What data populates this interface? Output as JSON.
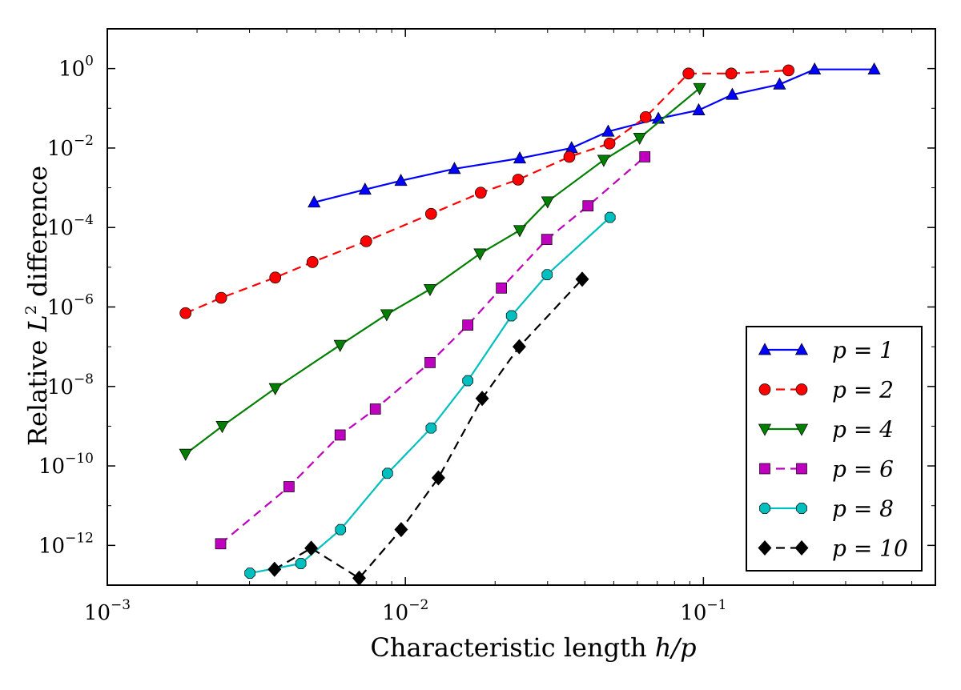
{
  "chart_data": {
    "type": "line",
    "title": "",
    "xlabel": "Characteristic length h/p",
    "ylabel": "Relative L² difference",
    "xlabel_parts": {
      "text": "Characteristic length ",
      "math": "h/p"
    },
    "ylabel_parts": {
      "pre": "Relative ",
      "math": "L",
      "sup": "2",
      "post": " difference"
    },
    "xscale": "log",
    "yscale": "log",
    "xlim": [
      0.001,
      0.6
    ],
    "ylim": [
      1e-13,
      10.0
    ],
    "x_ticks": [
      {
        "value": 0.001,
        "base": "10",
        "exp": "−3"
      },
      {
        "value": 0.01,
        "base": "10",
        "exp": "−2"
      },
      {
        "value": 0.1,
        "base": "10",
        "exp": "−1"
      }
    ],
    "y_ticks": [
      {
        "value": 1,
        "base": "10",
        "exp": "0"
      },
      {
        "value": 0.01,
        "base": "10",
        "exp": "−2"
      },
      {
        "value": 0.0001,
        "base": "10",
        "exp": "−4"
      },
      {
        "value": 1e-06,
        "base": "10",
        "exp": "−6"
      },
      {
        "value": 1e-08,
        "base": "10",
        "exp": "−8"
      },
      {
        "value": 1e-10,
        "base": "10",
        "exp": "−10"
      },
      {
        "value": 1e-12,
        "base": "10",
        "exp": "−12"
      }
    ],
    "legend_position": "bottom-right",
    "series": [
      {
        "name": "p = 1",
        "color": "#0000ff",
        "marker": "triangle-up",
        "dash": "solid",
        "x": [
          0.00494,
          0.00732,
          0.00966,
          0.0146,
          0.0242,
          0.0361,
          0.0479,
          0.0706,
          0.0964,
          0.125,
          0.18,
          0.236,
          0.374
        ],
        "y": [
          0.00043,
          0.0009,
          0.0015,
          0.003,
          0.0055,
          0.01,
          0.026,
          0.055,
          0.09,
          0.22,
          0.4,
          0.95,
          0.95
        ]
      },
      {
        "name": "p = 2",
        "color": "#ff0000",
        "marker": "circle",
        "dash": "dashed",
        "x": [
          0.00183,
          0.00241,
          0.00366,
          0.00488,
          0.00739,
          0.0122,
          0.0179,
          0.0239,
          0.0355,
          0.0484,
          0.064,
          0.0891,
          0.124,
          0.193
        ],
        "y": [
          7e-07,
          1.7e-06,
          5.5e-06,
          1.35e-05,
          4.5e-05,
          0.00022,
          0.00075,
          0.0016,
          0.006,
          0.013,
          0.06,
          0.75,
          0.75,
          0.9
        ]
      },
      {
        "name": "p = 4",
        "color": "#007f00",
        "marker": "triangle-down",
        "dash": "solid",
        "x": [
          0.00183,
          0.00243,
          0.00366,
          0.00604,
          0.00866,
          0.0121,
          0.0178,
          0.0242,
          0.03,
          0.0463,
          0.0611,
          0.0971
        ],
        "y": [
          2e-10,
          1e-09,
          9e-09,
          1.1e-07,
          6.5e-07,
          2.8e-06,
          2.2e-05,
          8.5e-05,
          0.00045,
          0.005,
          0.018,
          0.32
        ]
      },
      {
        "name": "p = 6",
        "color": "#bf00bf",
        "marker": "square",
        "dash": "dashed",
        "x": [
          0.0024,
          0.00407,
          0.00604,
          0.00793,
          0.0121,
          0.0162,
          0.021,
          0.0298,
          0.041,
          0.0636
        ],
        "y": [
          1.1e-12,
          3e-11,
          6e-10,
          2.7e-09,
          4e-08,
          3.5e-07,
          3e-06,
          5e-05,
          0.00035,
          0.006
        ]
      },
      {
        "name": "p = 8",
        "color": "#00bfbf",
        "marker": "octagon",
        "dash": "solid",
        "x": [
          0.00301,
          0.00446,
          0.00606,
          0.00871,
          0.0122,
          0.0162,
          0.0227,
          0.0299,
          0.0486
        ],
        "y": [
          2e-13,
          3.5e-13,
          2.5e-12,
          6.5e-11,
          9e-10,
          1.4e-08,
          6e-07,
          6.5e-06,
          0.00018
        ]
      },
      {
        "name": "p = 10",
        "color": "#000000",
        "marker": "diamond",
        "dash": "dashed",
        "x": [
          0.00364,
          0.00483,
          0.007,
          0.00968,
          0.0129,
          0.0181,
          0.0241,
          0.0392
        ],
        "y": [
          2.5e-13,
          8.5e-13,
          1.5e-13,
          2.5e-12,
          5e-11,
          5e-09,
          1e-07,
          5e-06
        ]
      }
    ]
  }
}
